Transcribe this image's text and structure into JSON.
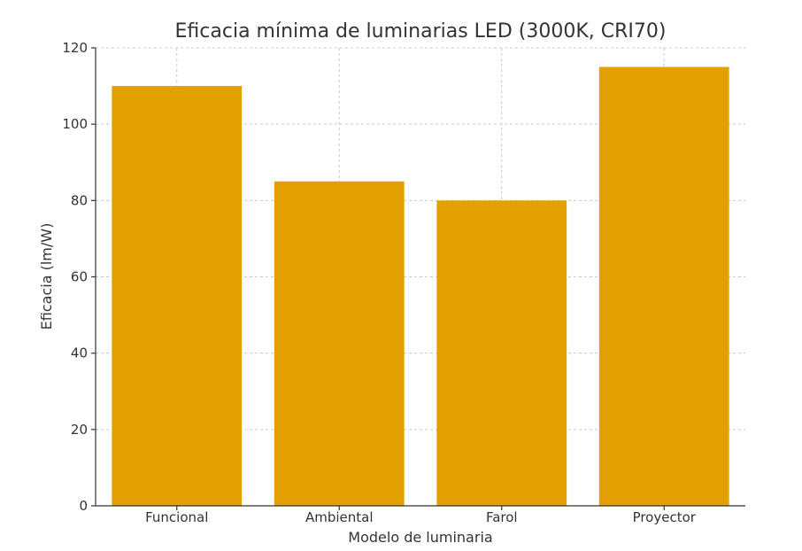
{
  "chart_data": {
    "type": "bar",
    "title": "Eficacia mínima de luminarias LED (3000K, CRI70)",
    "xlabel": "Modelo de luminaria",
    "ylabel": "Eficacia (lm/W)",
    "categories": [
      "Funcional",
      "Ambiental",
      "Farol",
      "Proyector"
    ],
    "values": [
      110,
      85,
      80,
      115
    ],
    "ylim": [
      0,
      120
    ],
    "yticks": [
      0,
      20,
      40,
      60,
      80,
      100,
      120
    ],
    "grid": true,
    "bar_color": "#E3A100"
  }
}
